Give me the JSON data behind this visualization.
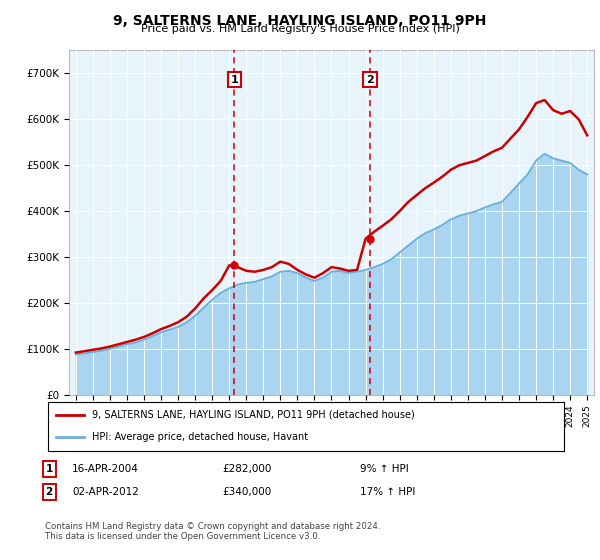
{
  "title": "9, SALTERNS LANE, HAYLING ISLAND, PO11 9PH",
  "subtitle": "Price paid vs. HM Land Registry's House Price Index (HPI)",
  "legend_line1": "9, SALTERNS LANE, HAYLING ISLAND, PO11 9PH (detached house)",
  "legend_line2": "HPI: Average price, detached house, Havant",
  "transaction1_date": "16-APR-2004",
  "transaction1_price": "£282,000",
  "transaction1_hpi": "9% ↑ HPI",
  "transaction2_date": "02-APR-2012",
  "transaction2_price": "£340,000",
  "transaction2_hpi": "17% ↑ HPI",
  "copyright_text": "Contains HM Land Registry data © Crown copyright and database right 2024.\nThis data is licensed under the Open Government Licence v3.0.",
  "ylim_min": 0,
  "ylim_max": 750000,
  "hpi_color": "#aad4f0",
  "hpi_line_color": "#6ab0d8",
  "price_color": "#cc0000",
  "background_plot": "#e8f4fc",
  "transaction1_x": 2004.29,
  "transaction2_x": 2012.25,
  "hpi_data": [
    [
      1995.0,
      88000
    ],
    [
      1995.5,
      90000
    ],
    [
      1996.0,
      93000
    ],
    [
      1996.5,
      96000
    ],
    [
      1997.0,
      100000
    ],
    [
      1997.5,
      105000
    ],
    [
      1998.0,
      110000
    ],
    [
      1998.5,
      114000
    ],
    [
      1999.0,
      120000
    ],
    [
      1999.5,
      128000
    ],
    [
      2000.0,
      136000
    ],
    [
      2000.5,
      142000
    ],
    [
      2001.0,
      148000
    ],
    [
      2001.5,
      158000
    ],
    [
      2002.0,
      172000
    ],
    [
      2002.5,
      190000
    ],
    [
      2003.0,
      207000
    ],
    [
      2003.5,
      222000
    ],
    [
      2004.0,
      232000
    ],
    [
      2004.5,
      240000
    ],
    [
      2005.0,
      244000
    ],
    [
      2005.5,
      246000
    ],
    [
      2006.0,
      252000
    ],
    [
      2006.5,
      258000
    ],
    [
      2007.0,
      268000
    ],
    [
      2007.5,
      270000
    ],
    [
      2008.0,
      265000
    ],
    [
      2008.5,
      255000
    ],
    [
      2009.0,
      248000
    ],
    [
      2009.5,
      255000
    ],
    [
      2010.0,
      268000
    ],
    [
      2010.5,
      270000
    ],
    [
      2011.0,
      265000
    ],
    [
      2011.5,
      268000
    ],
    [
      2012.0,
      272000
    ],
    [
      2012.5,
      278000
    ],
    [
      2013.0,
      285000
    ],
    [
      2013.5,
      295000
    ],
    [
      2014.0,
      310000
    ],
    [
      2014.5,
      325000
    ],
    [
      2015.0,
      340000
    ],
    [
      2015.5,
      352000
    ],
    [
      2016.0,
      360000
    ],
    [
      2016.5,
      370000
    ],
    [
      2017.0,
      382000
    ],
    [
      2017.5,
      390000
    ],
    [
      2018.0,
      395000
    ],
    [
      2018.5,
      400000
    ],
    [
      2019.0,
      408000
    ],
    [
      2019.5,
      415000
    ],
    [
      2020.0,
      420000
    ],
    [
      2020.5,
      440000
    ],
    [
      2021.0,
      460000
    ],
    [
      2021.5,
      480000
    ],
    [
      2022.0,
      510000
    ],
    [
      2022.5,
      525000
    ],
    [
      2023.0,
      515000
    ],
    [
      2023.5,
      510000
    ],
    [
      2024.0,
      505000
    ],
    [
      2024.5,
      490000
    ],
    [
      2025.0,
      480000
    ]
  ],
  "price_data": [
    [
      1995.0,
      92000
    ],
    [
      1995.5,
      95000
    ],
    [
      1996.0,
      98000
    ],
    [
      1996.5,
      101000
    ],
    [
      1997.0,
      105000
    ],
    [
      1997.5,
      110000
    ],
    [
      1998.0,
      115000
    ],
    [
      1998.5,
      120000
    ],
    [
      1999.0,
      126000
    ],
    [
      1999.5,
      134000
    ],
    [
      2000.0,
      143000
    ],
    [
      2000.5,
      150000
    ],
    [
      2001.0,
      158000
    ],
    [
      2001.5,
      170000
    ],
    [
      2002.0,
      188000
    ],
    [
      2002.5,
      210000
    ],
    [
      2003.0,
      228000
    ],
    [
      2003.5,
      248000
    ],
    [
      2004.0,
      282000
    ],
    [
      2004.5,
      278000
    ],
    [
      2005.0,
      270000
    ],
    [
      2005.5,
      268000
    ],
    [
      2006.0,
      272000
    ],
    [
      2006.5,
      278000
    ],
    [
      2007.0,
      290000
    ],
    [
      2007.5,
      285000
    ],
    [
      2008.0,
      272000
    ],
    [
      2008.5,
      262000
    ],
    [
      2009.0,
      255000
    ],
    [
      2009.5,
      265000
    ],
    [
      2010.0,
      278000
    ],
    [
      2010.5,
      275000
    ],
    [
      2011.0,
      270000
    ],
    [
      2011.5,
      272000
    ],
    [
      2012.0,
      340000
    ],
    [
      2012.5,
      355000
    ],
    [
      2013.0,
      368000
    ],
    [
      2013.5,
      382000
    ],
    [
      2014.0,
      400000
    ],
    [
      2014.5,
      420000
    ],
    [
      2015.0,
      435000
    ],
    [
      2015.5,
      450000
    ],
    [
      2016.0,
      462000
    ],
    [
      2016.5,
      475000
    ],
    [
      2017.0,
      490000
    ],
    [
      2017.5,
      500000
    ],
    [
      2018.0,
      505000
    ],
    [
      2018.5,
      510000
    ],
    [
      2019.0,
      520000
    ],
    [
      2019.5,
      530000
    ],
    [
      2020.0,
      538000
    ],
    [
      2020.5,
      558000
    ],
    [
      2021.0,
      578000
    ],
    [
      2021.5,
      605000
    ],
    [
      2022.0,
      635000
    ],
    [
      2022.5,
      642000
    ],
    [
      2023.0,
      620000
    ],
    [
      2023.5,
      612000
    ],
    [
      2024.0,
      618000
    ],
    [
      2024.5,
      600000
    ],
    [
      2025.0,
      565000
    ]
  ]
}
